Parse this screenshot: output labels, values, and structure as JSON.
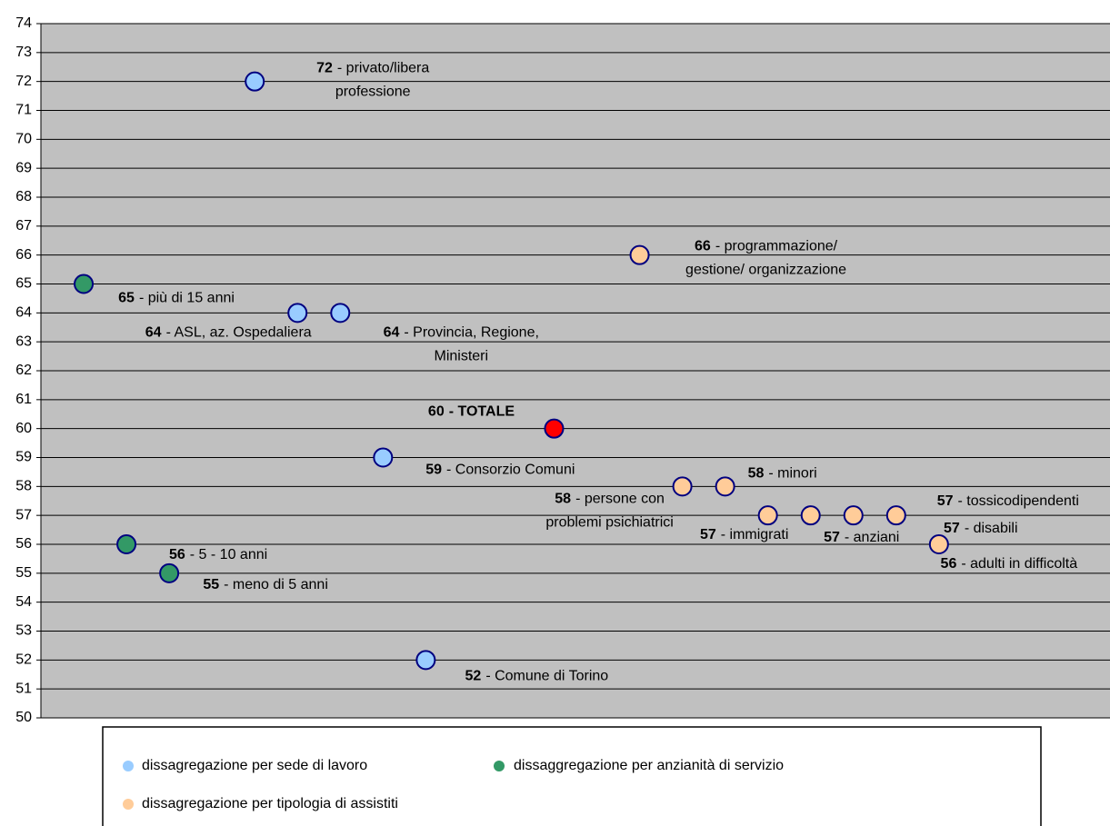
{
  "chart_data": {
    "type": "scatter",
    "xlim": [
      0,
      25
    ],
    "ylim": [
      50,
      74
    ],
    "yticks": [
      50,
      51,
      52,
      53,
      54,
      55,
      56,
      57,
      58,
      59,
      60,
      61,
      62,
      63,
      64,
      65,
      66,
      67,
      68,
      69,
      70,
      71,
      72,
      73,
      74
    ],
    "grid": true,
    "series": [
      {
        "name": "dissagregazione per sede di lavoro",
        "color": "#99ccff",
        "x": [
          5,
          6,
          7,
          8,
          9
        ],
        "values": [
          72,
          64,
          64,
          59,
          52
        ],
        "labels": [
          [
            "- privato/libera",
            "professione"
          ],
          [
            "- ASL, az. Ospedaliera"
          ],
          [
            "- Provincia, Regione,",
            "Ministeri"
          ],
          [
            "- Consorzio Comuni"
          ],
          [
            "- Comune di Torino"
          ]
        ]
      },
      {
        "name": "dissaggregazione per anzianità di servizio",
        "color": "#339966",
        "x": [
          1,
          2,
          3
        ],
        "values": [
          65,
          56,
          55
        ],
        "labels": [
          [
            "- più di 15 anni"
          ],
          [
            "- 5 - 10 anni"
          ],
          [
            "- meno di 5 anni"
          ]
        ]
      },
      {
        "name": "dissagregazione per tipologia di assistiti",
        "color": "#ffcc99",
        "x": [
          14,
          15,
          16,
          17,
          18,
          19,
          20,
          21
        ],
        "values": [
          66,
          58,
          58,
          57,
          57,
          57,
          57,
          56
        ],
        "labels": [
          [
            "- programmazione/",
            "gestione/ organizzazione"
          ],
          [
            "- persone con",
            "problemi psichiatrici"
          ],
          [
            "- minori"
          ],
          [
            "- immigrati"
          ],
          [
            "- anziani"
          ],
          [
            "- disabili"
          ],
          [
            "- tossicodipendenti"
          ],
          [
            "- adulti in difficoltà"
          ]
        ]
      }
    ],
    "total": {
      "x": 12,
      "value": 60,
      "color": "#ff0000",
      "label": "- TOTALE"
    }
  }
}
